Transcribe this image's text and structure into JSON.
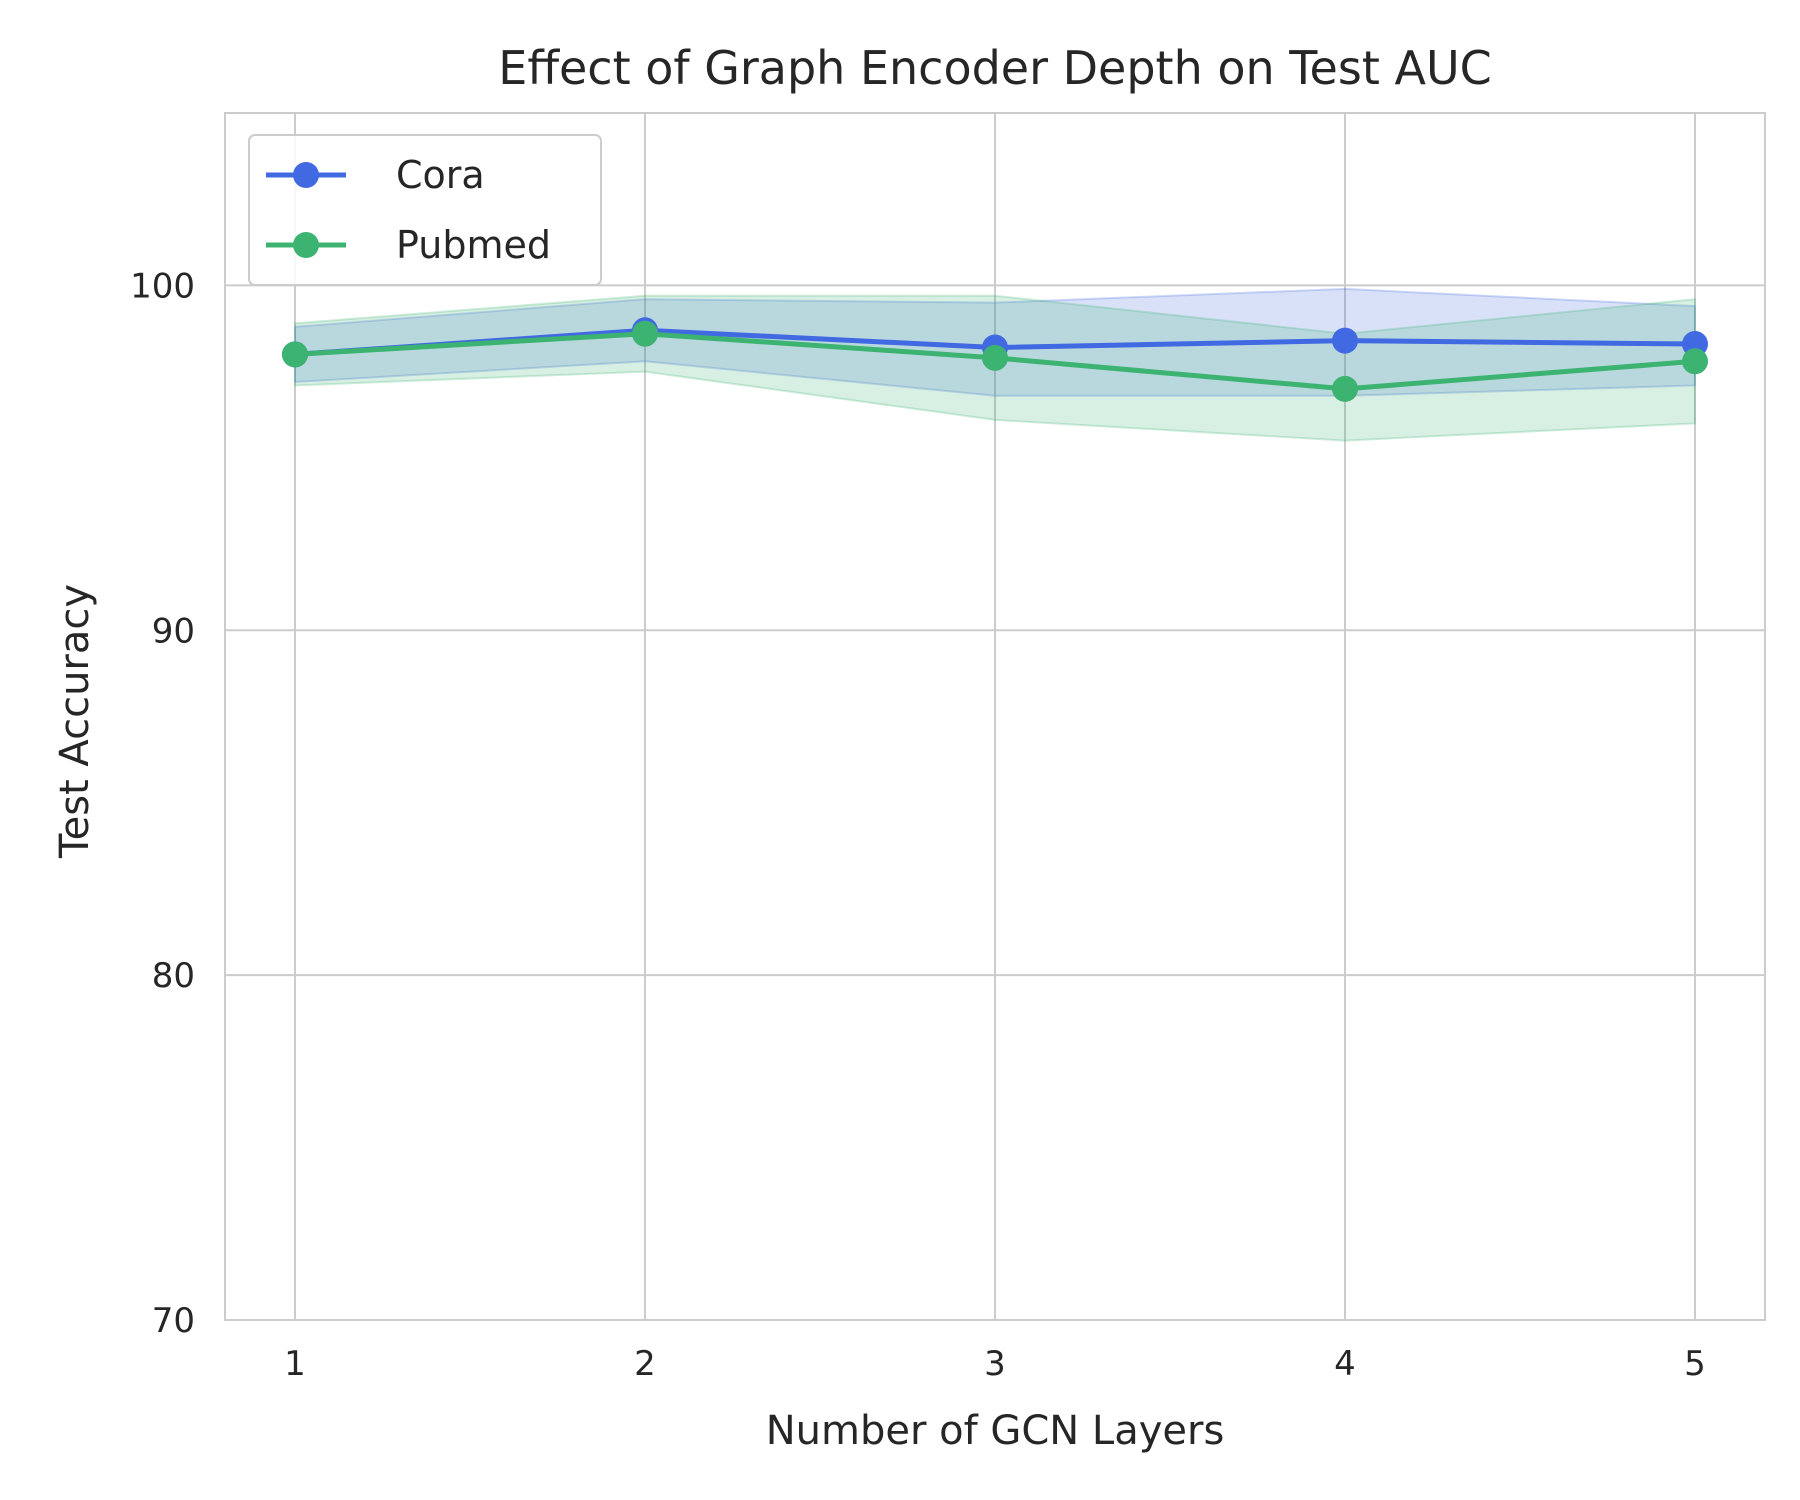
{
  "chart_data": {
    "type": "line",
    "title": "Effect of Graph Encoder Depth on Test AUC",
    "xlabel": "Number of GCN Layers",
    "ylabel": "Test Accuracy",
    "x": [
      1,
      2,
      3,
      4,
      5
    ],
    "xlim": [
      0.8,
      5.2
    ],
    "ylim": [
      70,
      105
    ],
    "yticks": [
      70,
      80,
      90,
      100
    ],
    "grid": true,
    "legend_position": "upper-left",
    "series": [
      {
        "name": "Cora",
        "color": "#4169e1",
        "values": [
          98.0,
          98.7,
          98.2,
          98.4,
          98.3
        ],
        "band_low": [
          97.2,
          97.8,
          96.8,
          96.8,
          97.1
        ],
        "band_high": [
          98.8,
          99.6,
          99.5,
          99.9,
          99.4
        ]
      },
      {
        "name": "Pubmed",
        "color": "#3cb371",
        "values": [
          98.0,
          98.6,
          97.9,
          97.0,
          97.8
        ],
        "band_low": [
          97.1,
          97.5,
          96.1,
          95.5,
          96.0
        ],
        "band_high": [
          98.9,
          99.7,
          99.7,
          98.6,
          99.6
        ]
      }
    ]
  }
}
